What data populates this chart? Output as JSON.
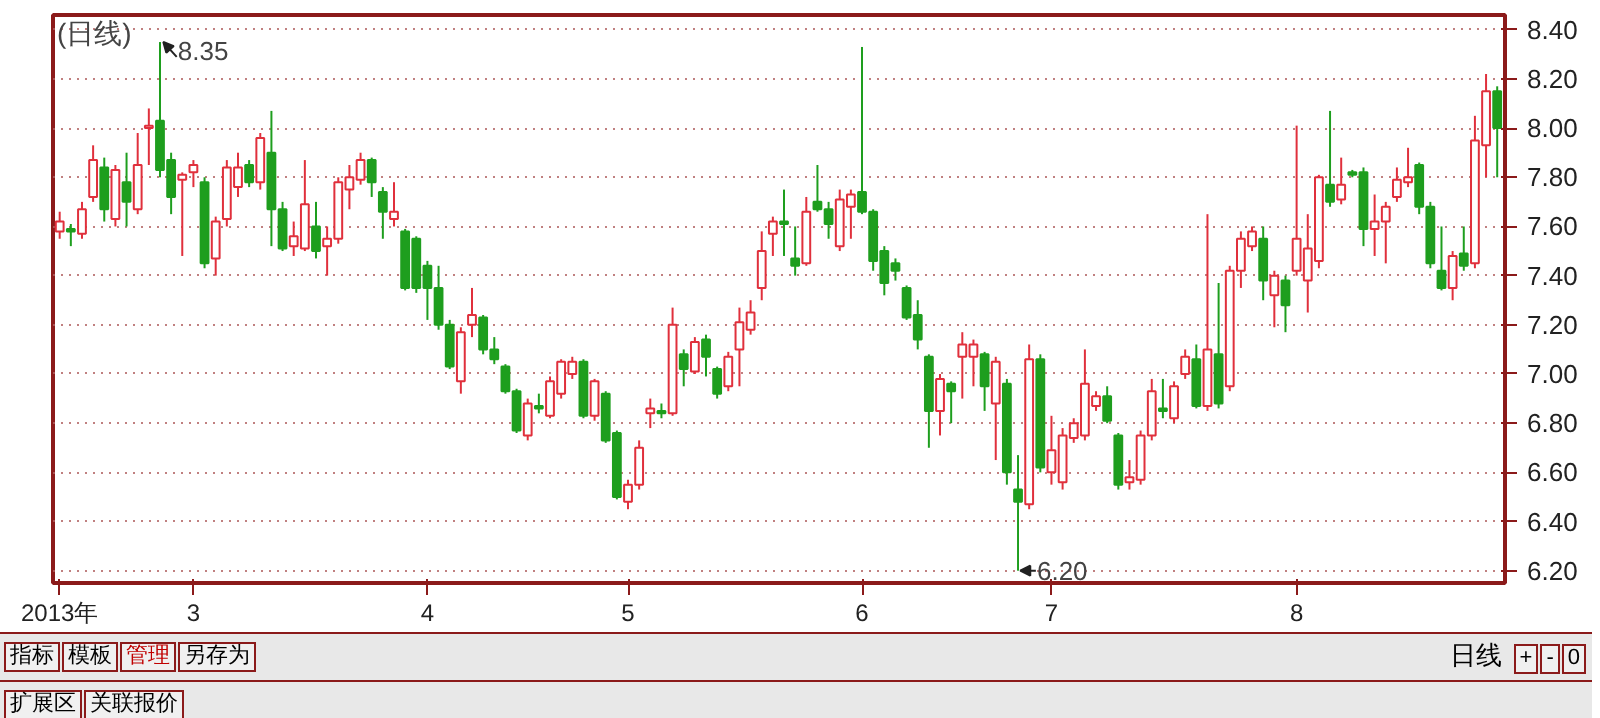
{
  "chart_data": {
    "type": "candlestick",
    "title": "(日线)",
    "categories": [
      "2013年",
      null,
      null,
      null,
      null,
      null,
      null,
      null,
      null,
      null,
      null,
      null,
      "3",
      null,
      null,
      null,
      null,
      null,
      null,
      null,
      null,
      null,
      null,
      null,
      null,
      null,
      null,
      null,
      null,
      null,
      null,
      null,
      null,
      "4",
      null,
      null,
      null,
      null,
      null,
      null,
      null,
      null,
      null,
      null,
      null,
      null,
      null,
      null,
      null,
      null,
      null,
      "5",
      null,
      null,
      null,
      null,
      null,
      null,
      null,
      null,
      null,
      null,
      null,
      null,
      null,
      null,
      null,
      null,
      null,
      null,
      null,
      null,
      "6",
      null,
      null,
      null,
      null,
      null,
      null,
      null,
      null,
      null,
      null,
      null,
      null,
      null,
      null,
      null,
      null,
      "7",
      null,
      null,
      null,
      null,
      null,
      null,
      null,
      null,
      null,
      null,
      null,
      null,
      null,
      null,
      null,
      null,
      null,
      null,
      null,
      null,
      null,
      "8",
      null,
      null,
      null,
      null,
      null,
      null,
      null,
      null,
      null,
      null,
      null,
      null,
      null,
      null,
      null,
      null,
      null,
      null
    ],
    "ohlc": [
      [
        7.58,
        7.66,
        7.55,
        7.62
      ],
      [
        7.59,
        7.61,
        7.52,
        7.58
      ],
      [
        7.57,
        7.7,
        7.55,
        7.67
      ],
      [
        7.72,
        7.93,
        7.7,
        7.87
      ],
      [
        7.84,
        7.88,
        7.62,
        7.67
      ],
      [
        7.63,
        7.85,
        7.6,
        7.83
      ],
      [
        7.78,
        7.9,
        7.6,
        7.7
      ],
      [
        7.67,
        7.98,
        7.65,
        7.85
      ],
      [
        8.0,
        8.08,
        7.85,
        8.01
      ],
      [
        8.03,
        8.35,
        7.8,
        7.83
      ],
      [
        7.87,
        7.9,
        7.65,
        7.72
      ],
      [
        7.79,
        7.82,
        7.48,
        7.81
      ],
      [
        7.82,
        7.87,
        7.76,
        7.85
      ],
      [
        7.78,
        7.8,
        7.43,
        7.45
      ],
      [
        7.47,
        7.64,
        7.4,
        7.62
      ],
      [
        7.63,
        7.87,
        7.6,
        7.84
      ],
      [
        7.76,
        7.9,
        7.72,
        7.84
      ],
      [
        7.85,
        7.87,
        7.76,
        7.78
      ],
      [
        7.78,
        7.98,
        7.75,
        7.96
      ],
      [
        7.9,
        8.07,
        7.52,
        7.67
      ],
      [
        7.67,
        7.7,
        7.5,
        7.51
      ],
      [
        7.52,
        7.62,
        7.48,
        7.56
      ],
      [
        7.51,
        7.87,
        7.5,
        7.69
      ],
      [
        7.6,
        7.7,
        7.47,
        7.5
      ],
      [
        7.52,
        7.6,
        7.4,
        7.55
      ],
      [
        7.55,
        7.8,
        7.53,
        7.78
      ],
      [
        7.75,
        7.85,
        7.67,
        7.8
      ],
      [
        7.79,
        7.9,
        7.77,
        7.87
      ],
      [
        7.87,
        7.88,
        7.72,
        7.78
      ],
      [
        7.74,
        7.76,
        7.55,
        7.66
      ],
      [
        7.63,
        7.78,
        7.6,
        7.66
      ],
      [
        7.58,
        7.59,
        7.34,
        7.35
      ],
      [
        7.55,
        7.56,
        7.33,
        7.35
      ],
      [
        7.44,
        7.46,
        7.22,
        7.35
      ],
      [
        7.35,
        7.44,
        7.18,
        7.2
      ],
      [
        7.2,
        7.22,
        7.02,
        7.03
      ],
      [
        6.97,
        7.19,
        6.92,
        7.17
      ],
      [
        7.2,
        7.35,
        7.15,
        7.24
      ],
      [
        7.23,
        7.24,
        7.08,
        7.1
      ],
      [
        7.1,
        7.15,
        7.04,
        7.06
      ],
      [
        7.03,
        7.04,
        6.92,
        6.93
      ],
      [
        6.93,
        6.94,
        6.76,
        6.77
      ],
      [
        6.75,
        6.9,
        6.73,
        6.88
      ],
      [
        6.87,
        6.92,
        6.84,
        6.86
      ],
      [
        6.83,
        6.99,
        6.82,
        6.97
      ],
      [
        6.92,
        7.06,
        6.9,
        7.05
      ],
      [
        7.0,
        7.07,
        6.98,
        7.05
      ],
      [
        7.05,
        7.06,
        6.82,
        6.83
      ],
      [
        6.83,
        6.98,
        6.81,
        6.97
      ],
      [
        6.92,
        6.93,
        6.72,
        6.73
      ],
      [
        6.76,
        6.77,
        6.49,
        6.5
      ],
      [
        6.48,
        6.57,
        6.45,
        6.55
      ],
      [
        6.55,
        6.73,
        6.53,
        6.7
      ],
      [
        6.84,
        6.9,
        6.78,
        6.86
      ],
      [
        6.85,
        6.88,
        6.82,
        6.84
      ],
      [
        6.84,
        7.27,
        6.83,
        7.2
      ],
      [
        7.08,
        7.1,
        6.95,
        7.02
      ],
      [
        7.01,
        7.15,
        7.0,
        7.13
      ],
      [
        7.14,
        7.16,
        6.99,
        7.07
      ],
      [
        7.02,
        7.03,
        6.9,
        6.92
      ],
      [
        6.95,
        7.09,
        6.93,
        7.07
      ],
      [
        7.1,
        7.27,
        6.95,
        7.21
      ],
      [
        7.18,
        7.3,
        7.16,
        7.25
      ],
      [
        7.35,
        7.58,
        7.3,
        7.5
      ],
      [
        7.57,
        7.64,
        7.48,
        7.62
      ],
      [
        7.62,
        7.75,
        7.48,
        7.61
      ],
      [
        7.47,
        7.6,
        7.4,
        7.44
      ],
      [
        7.45,
        7.72,
        7.44,
        7.66
      ],
      [
        7.7,
        7.85,
        7.66,
        7.67
      ],
      [
        7.67,
        7.7,
        7.55,
        7.61
      ],
      [
        7.52,
        7.75,
        7.5,
        7.71
      ],
      [
        7.68,
        7.75,
        7.55,
        7.73
      ],
      [
        7.74,
        8.33,
        7.65,
        7.66
      ],
      [
        7.66,
        7.67,
        7.42,
        7.46
      ],
      [
        7.5,
        7.52,
        7.32,
        7.37
      ],
      [
        7.45,
        7.47,
        7.38,
        7.42
      ],
      [
        7.35,
        7.36,
        7.22,
        7.23
      ],
      [
        7.24,
        7.3,
        7.1,
        7.14
      ],
      [
        7.07,
        7.08,
        6.7,
        6.85
      ],
      [
        6.85,
        7.0,
        6.75,
        6.98
      ],
      [
        6.96,
        6.97,
        6.8,
        6.93
      ],
      [
        7.07,
        7.17,
        6.9,
        7.12
      ],
      [
        7.07,
        7.14,
        6.95,
        7.12
      ],
      [
        7.08,
        7.09,
        6.85,
        6.95
      ],
      [
        6.88,
        7.07,
        6.65,
        7.05
      ],
      [
        6.96,
        6.98,
        6.55,
        6.6
      ],
      [
        6.53,
        6.67,
        6.2,
        6.48
      ],
      [
        6.47,
        7.12,
        6.45,
        7.06
      ],
      [
        7.06,
        7.08,
        6.6,
        6.62
      ],
      [
        6.6,
        6.83,
        6.55,
        6.69
      ],
      [
        6.56,
        6.78,
        6.53,
        6.75
      ],
      [
        6.74,
        6.82,
        6.72,
        6.8
      ],
      [
        6.75,
        7.1,
        6.73,
        6.96
      ],
      [
        6.87,
        6.93,
        6.85,
        6.91
      ],
      [
        6.91,
        6.95,
        6.8,
        6.81
      ],
      [
        6.75,
        6.76,
        6.53,
        6.55
      ],
      [
        6.56,
        6.65,
        6.53,
        6.58
      ],
      [
        6.57,
        6.77,
        6.55,
        6.75
      ],
      [
        6.75,
        6.98,
        6.73,
        6.93
      ],
      [
        6.86,
        6.98,
        6.82,
        6.85
      ],
      [
        6.82,
        6.97,
        6.8,
        6.95
      ],
      [
        7.0,
        7.1,
        6.98,
        7.07
      ],
      [
        7.06,
        7.12,
        6.86,
        6.87
      ],
      [
        6.87,
        7.65,
        6.85,
        7.1
      ],
      [
        7.08,
        7.37,
        6.86,
        6.88
      ],
      [
        6.95,
        7.44,
        6.93,
        7.42
      ],
      [
        7.42,
        7.58,
        7.35,
        7.55
      ],
      [
        7.52,
        7.6,
        7.5,
        7.58
      ],
      [
        7.55,
        7.6,
        7.3,
        7.38
      ],
      [
        7.32,
        7.42,
        7.19,
        7.4
      ],
      [
        7.38,
        7.4,
        7.17,
        7.28
      ],
      [
        7.42,
        8.01,
        7.4,
        7.55
      ],
      [
        7.38,
        7.65,
        7.25,
        7.51
      ],
      [
        7.46,
        7.81,
        7.43,
        7.8
      ],
      [
        7.77,
        8.07,
        7.68,
        7.7
      ],
      [
        7.71,
        7.88,
        7.69,
        7.77
      ],
      [
        7.82,
        7.83,
        7.8,
        7.81
      ],
      [
        7.82,
        7.84,
        7.52,
        7.59
      ],
      [
        7.59,
        7.73,
        7.48,
        7.62
      ],
      [
        7.62,
        7.7,
        7.45,
        7.68
      ],
      [
        7.72,
        7.84,
        7.7,
        7.79
      ],
      [
        7.78,
        7.92,
        7.76,
        7.8
      ],
      [
        7.85,
        7.86,
        7.65,
        7.68
      ],
      [
        7.68,
        7.7,
        7.43,
        7.45
      ],
      [
        7.42,
        7.6,
        7.34,
        7.35
      ],
      [
        7.35,
        7.5,
        7.3,
        7.48
      ],
      [
        7.49,
        7.6,
        7.42,
        7.44
      ],
      [
        7.45,
        8.05,
        7.43,
        7.95
      ],
      [
        7.93,
        8.22,
        7.8,
        8.15
      ],
      [
        8.15,
        8.17,
        7.8,
        8.0
      ]
    ],
    "colors": [
      "#e0303c",
      "#1e9e1e",
      "#e0303c",
      "#e0303c",
      "#1e9e1e",
      "#e0303c",
      "#1e9e1e",
      "#e0303c",
      "#e0303c",
      "#1e9e1e",
      "#1e9e1e",
      "#e0303c",
      "#e0303c",
      "#1e9e1e",
      "#e0303c",
      "#e0303c",
      "#e0303c",
      "#1e9e1e",
      "#e0303c",
      "#1e9e1e",
      "#1e9e1e",
      "#e0303c",
      "#e0303c",
      "#1e9e1e",
      "#e0303c",
      "#e0303c",
      "#e0303c",
      "#e0303c",
      "#1e9e1e",
      "#1e9e1e",
      "#e0303c",
      "#1e9e1e",
      "#1e9e1e",
      "#1e9e1e",
      "#1e9e1e",
      "#1e9e1e",
      "#e0303c",
      "#e0303c",
      "#1e9e1e",
      "#1e9e1e",
      "#1e9e1e",
      "#1e9e1e",
      "#e0303c",
      "#1e9e1e",
      "#e0303c",
      "#e0303c",
      "#e0303c",
      "#1e9e1e",
      "#e0303c",
      "#1e9e1e",
      "#1e9e1e",
      "#e0303c",
      "#e0303c",
      "#e0303c",
      "#1e9e1e",
      "#e0303c",
      "#1e9e1e",
      "#e0303c",
      "#1e9e1e",
      "#1e9e1e",
      "#e0303c",
      "#e0303c",
      "#e0303c",
      "#e0303c",
      "#e0303c",
      "#1e9e1e",
      "#1e9e1e",
      "#e0303c",
      "#1e9e1e",
      "#1e9e1e",
      "#e0303c",
      "#e0303c",
      "#1e9e1e",
      "#1e9e1e",
      "#1e9e1e",
      "#1e9e1e",
      "#1e9e1e",
      "#1e9e1e",
      "#1e9e1e",
      "#e0303c",
      "#1e9e1e",
      "#e0303c",
      "#e0303c",
      "#1e9e1e",
      "#e0303c",
      "#1e9e1e",
      "#1e9e1e",
      "#e0303c",
      "#1e9e1e",
      "#e0303c",
      "#e0303c",
      "#e0303c",
      "#e0303c",
      "#e0303c",
      "#1e9e1e",
      "#1e9e1e",
      "#e0303c",
      "#e0303c",
      "#e0303c",
      "#1e9e1e",
      "#e0303c",
      "#e0303c",
      "#1e9e1e",
      "#e0303c",
      "#1e9e1e",
      "#e0303c",
      "#e0303c",
      "#e0303c",
      "#1e9e1e",
      "#e0303c",
      "#1e9e1e",
      "#e0303c",
      "#e0303c",
      "#e0303c",
      "#1e9e1e",
      "#e0303c",
      "#1e9e1e",
      "#1e9e1e",
      "#e0303c",
      "#e0303c",
      "#e0303c",
      "#e0303c",
      "#1e9e1e",
      "#1e9e1e",
      "#1e9e1e",
      "#e0303c",
      "#1e9e1e",
      "#e0303c",
      "#e0303c",
      "#1e9e1e"
    ],
    "ylim": [
      6.15,
      8.46
    ],
    "yticks": [
      {
        "value": 6.2,
        "label": "6.20"
      },
      {
        "value": 6.4,
        "label": "6.40"
      },
      {
        "value": 6.6,
        "label": "6.60"
      },
      {
        "value": 6.8,
        "label": "6.80"
      },
      {
        "value": 7.0,
        "label": "7.00"
      },
      {
        "value": 7.2,
        "label": "7.20"
      },
      {
        "value": 7.4,
        "label": "7.40"
      },
      {
        "value": 7.6,
        "label": "7.60"
      },
      {
        "value": 7.8,
        "label": "7.80"
      },
      {
        "value": 8.0,
        "label": "8.00"
      },
      {
        "value": 8.2,
        "label": "8.20"
      },
      {
        "value": 8.4,
        "label": "8.40"
      }
    ],
    "grid": "y",
    "annotations": [
      "8.35",
      "6.20",
      "日线",
      "指标",
      "模板",
      "管理",
      "另存为",
      "+",
      "-",
      "0",
      "扩展区",
      "关联报价"
    ]
  }
}
